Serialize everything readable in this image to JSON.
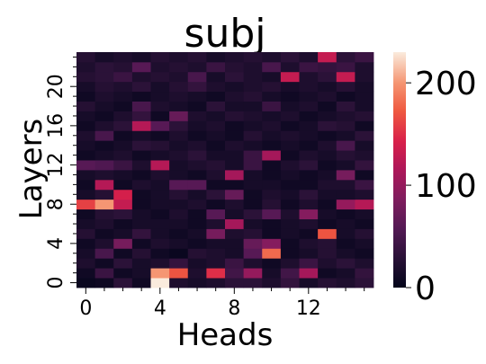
{
  "chart_data": {
    "type": "heatmap",
    "title": "subj",
    "xlabel": "Heads",
    "ylabel": "Layers",
    "x_ticks": [
      0,
      4,
      8,
      12
    ],
    "y_ticks": [
      0,
      4,
      8,
      12,
      16,
      20
    ],
    "n_heads": 16,
    "n_layers": 24,
    "colorbar": {
      "min": 0,
      "max": 230,
      "ticks": [
        0,
        100,
        200
      ]
    },
    "colormap": "rocket",
    "values": [
      [
        5,
        8,
        30,
        10,
        230,
        20,
        15,
        20,
        30,
        30,
        20,
        35,
        15,
        25,
        20,
        30
      ],
      [
        10,
        40,
        10,
        15,
        200,
        170,
        20,
        150,
        45,
        100,
        15,
        45,
        110,
        10,
        15,
        35
      ],
      [
        20,
        10,
        30,
        15,
        20,
        35,
        15,
        20,
        40,
        20,
        10,
        20,
        40,
        20,
        30,
        20
      ],
      [
        15,
        50,
        10,
        25,
        10,
        5,
        25,
        20,
        15,
        60,
        180,
        10,
        15,
        25,
        15,
        10
      ],
      [
        10,
        20,
        80,
        10,
        20,
        15,
        10,
        15,
        15,
        70,
        90,
        10,
        20,
        25,
        10,
        15
      ],
      [
        25,
        10,
        15,
        35,
        15,
        10,
        15,
        80,
        20,
        25,
        10,
        15,
        10,
        170,
        15,
        25
      ],
      [
        15,
        20,
        10,
        15,
        15,
        15,
        10,
        20,
        110,
        15,
        10,
        15,
        20,
        10,
        15,
        10
      ],
      [
        10,
        25,
        30,
        15,
        10,
        20,
        10,
        60,
        15,
        30,
        60,
        20,
        90,
        15,
        10,
        15
      ],
      [
        160,
        200,
        130,
        10,
        15,
        15,
        20,
        10,
        20,
        10,
        25,
        10,
        20,
        10,
        100,
        120
      ],
      [
        15,
        25,
        140,
        10,
        15,
        25,
        15,
        30,
        70,
        10,
        20,
        15,
        30,
        15,
        15,
        20
      ],
      [
        10,
        120,
        10,
        20,
        15,
        60,
        60,
        10,
        10,
        15,
        15,
        10,
        10,
        20,
        20,
        40
      ],
      [
        15,
        20,
        15,
        10,
        20,
        15,
        10,
        20,
        110,
        15,
        10,
        15,
        10,
        15,
        80,
        10
      ],
      [
        60,
        55,
        40,
        20,
        120,
        15,
        20,
        25,
        15,
        40,
        10,
        20,
        30,
        10,
        15,
        35
      ],
      [
        10,
        15,
        20,
        10,
        15,
        20,
        30,
        15,
        15,
        40,
        110,
        10,
        20,
        15,
        25,
        20
      ],
      [
        15,
        10,
        15,
        30,
        25,
        15,
        20,
        10,
        20,
        15,
        10,
        15,
        10,
        20,
        50,
        15
      ],
      [
        20,
        50,
        10,
        15,
        10,
        20,
        10,
        15,
        10,
        25,
        15,
        20,
        15,
        10,
        15,
        30
      ],
      [
        10,
        20,
        30,
        120,
        60,
        30,
        15,
        20,
        10,
        15,
        20,
        10,
        15,
        30,
        25,
        10
      ],
      [
        15,
        10,
        20,
        35,
        10,
        70,
        20,
        15,
        25,
        20,
        15,
        20,
        10,
        15,
        20,
        25
      ],
      [
        25,
        15,
        10,
        50,
        20,
        15,
        10,
        30,
        15,
        15,
        40,
        15,
        20,
        10,
        30,
        15
      ],
      [
        10,
        20,
        15,
        10,
        15,
        20,
        15,
        10,
        20,
        25,
        15,
        10,
        15,
        20,
        10,
        15
      ],
      [
        15,
        25,
        20,
        30,
        15,
        25,
        35,
        20,
        15,
        20,
        25,
        15,
        20,
        15,
        25,
        15
      ],
      [
        25,
        30,
        40,
        20,
        25,
        20,
        50,
        15,
        30,
        20,
        15,
        130,
        20,
        30,
        130,
        20
      ],
      [
        20,
        30,
        25,
        60,
        20,
        25,
        20,
        40,
        25,
        20,
        50,
        20,
        40,
        35,
        40,
        20
      ],
      [
        25,
        15,
        20,
        15,
        25,
        20,
        25,
        15,
        20,
        25,
        20,
        30,
        20,
        130,
        30,
        40
      ]
    ]
  }
}
